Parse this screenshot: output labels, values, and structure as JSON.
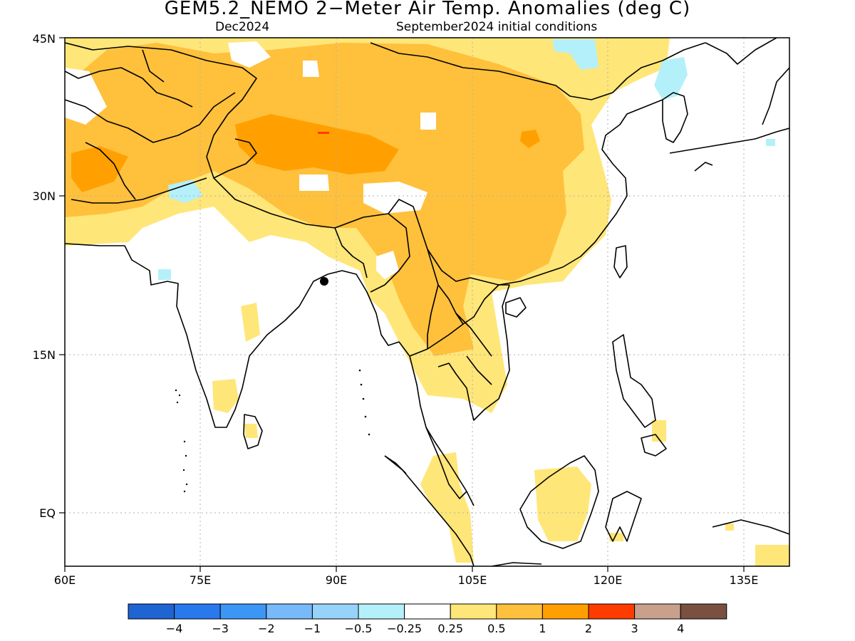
{
  "title": "GEM5.2_NEMO 2−Meter Air Temp. Anomalies (deg C)",
  "subtitle_left": "Dec2024",
  "subtitle_right": "September2024 initial conditions",
  "map": {
    "lon_range": [
      60,
      140
    ],
    "lat_range": [
      -5,
      45
    ],
    "x_ticks": [
      "60E",
      "75E",
      "90E",
      "105E",
      "120E",
      "135E"
    ],
    "y_ticks": [
      "EQ",
      "15N",
      "30N",
      "45N"
    ],
    "gridlines": true
  },
  "colorbar": {
    "colors": [
      "#1e64d2",
      "#2878ee",
      "#3c96f5",
      "#78b9fa",
      "#96d2fa",
      "#b4f0fa",
      "#ffffff",
      "#ffe678",
      "#ffc03c",
      "#ffa000",
      "#ff3c00",
      "#c8a08c",
      "#7a5040"
    ],
    "labels": [
      "−4",
      "−3",
      "−2",
      "−1",
      "−0.5",
      "−0.25",
      "0.25",
      "0.5",
      "1",
      "2",
      "3",
      "4"
    ]
  }
}
